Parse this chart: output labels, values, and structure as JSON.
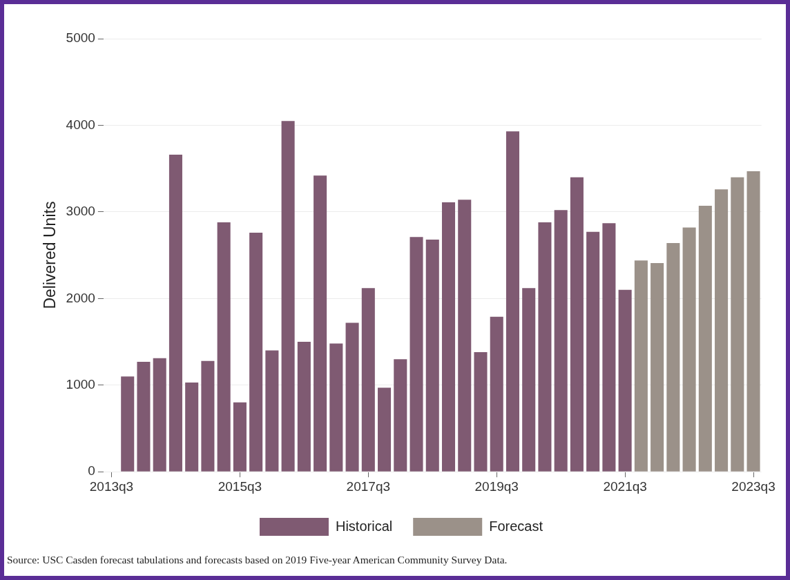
{
  "chart_data": {
    "type": "bar",
    "ylabel": "Delivered Units",
    "ylim": [
      0,
      5000
    ],
    "yticks": [
      0,
      1000,
      2000,
      3000,
      4000,
      5000
    ],
    "categories": [
      "2013q3",
      null,
      null,
      null,
      null,
      null,
      null,
      null,
      "2015q3",
      null,
      null,
      null,
      null,
      null,
      null,
      null,
      "2017q3",
      null,
      null,
      null,
      null,
      null,
      null,
      null,
      "2019q3",
      null,
      null,
      null,
      null,
      null,
      null,
      null,
      "2021q3",
      null,
      null,
      null,
      null,
      null,
      null,
      null,
      "2023q3"
    ],
    "grid": "y",
    "legend": "bottom",
    "series": [
      {
        "name": "Historical",
        "color": "#7f5a72",
        "values": [
          null,
          1100,
          1270,
          1310,
          3660,
          1030,
          1280,
          2880,
          800,
          2760,
          1400,
          4050,
          1500,
          3420,
          1480,
          1720,
          2120,
          970,
          1300,
          2710,
          2680,
          3110,
          3140,
          1380,
          1790,
          3930,
          2120,
          2880,
          3020,
          3400,
          2770,
          2870,
          2100,
          null,
          null,
          null,
          null,
          null,
          null,
          null,
          null
        ]
      },
      {
        "name": "Forecast",
        "color": "#9b9189",
        "values": [
          null,
          null,
          null,
          null,
          null,
          null,
          null,
          null,
          null,
          null,
          null,
          null,
          null,
          null,
          null,
          null,
          null,
          null,
          null,
          null,
          null,
          null,
          null,
          null,
          null,
          null,
          null,
          null,
          null,
          null,
          null,
          null,
          null,
          2440,
          2410,
          2640,
          2820,
          3070,
          3260,
          3400,
          3470
        ]
      }
    ],
    "annotations": [
      "Source: USC Casden forecast tabulations and forecasts based on 2019 Five-year American Community Survey Data."
    ]
  }
}
